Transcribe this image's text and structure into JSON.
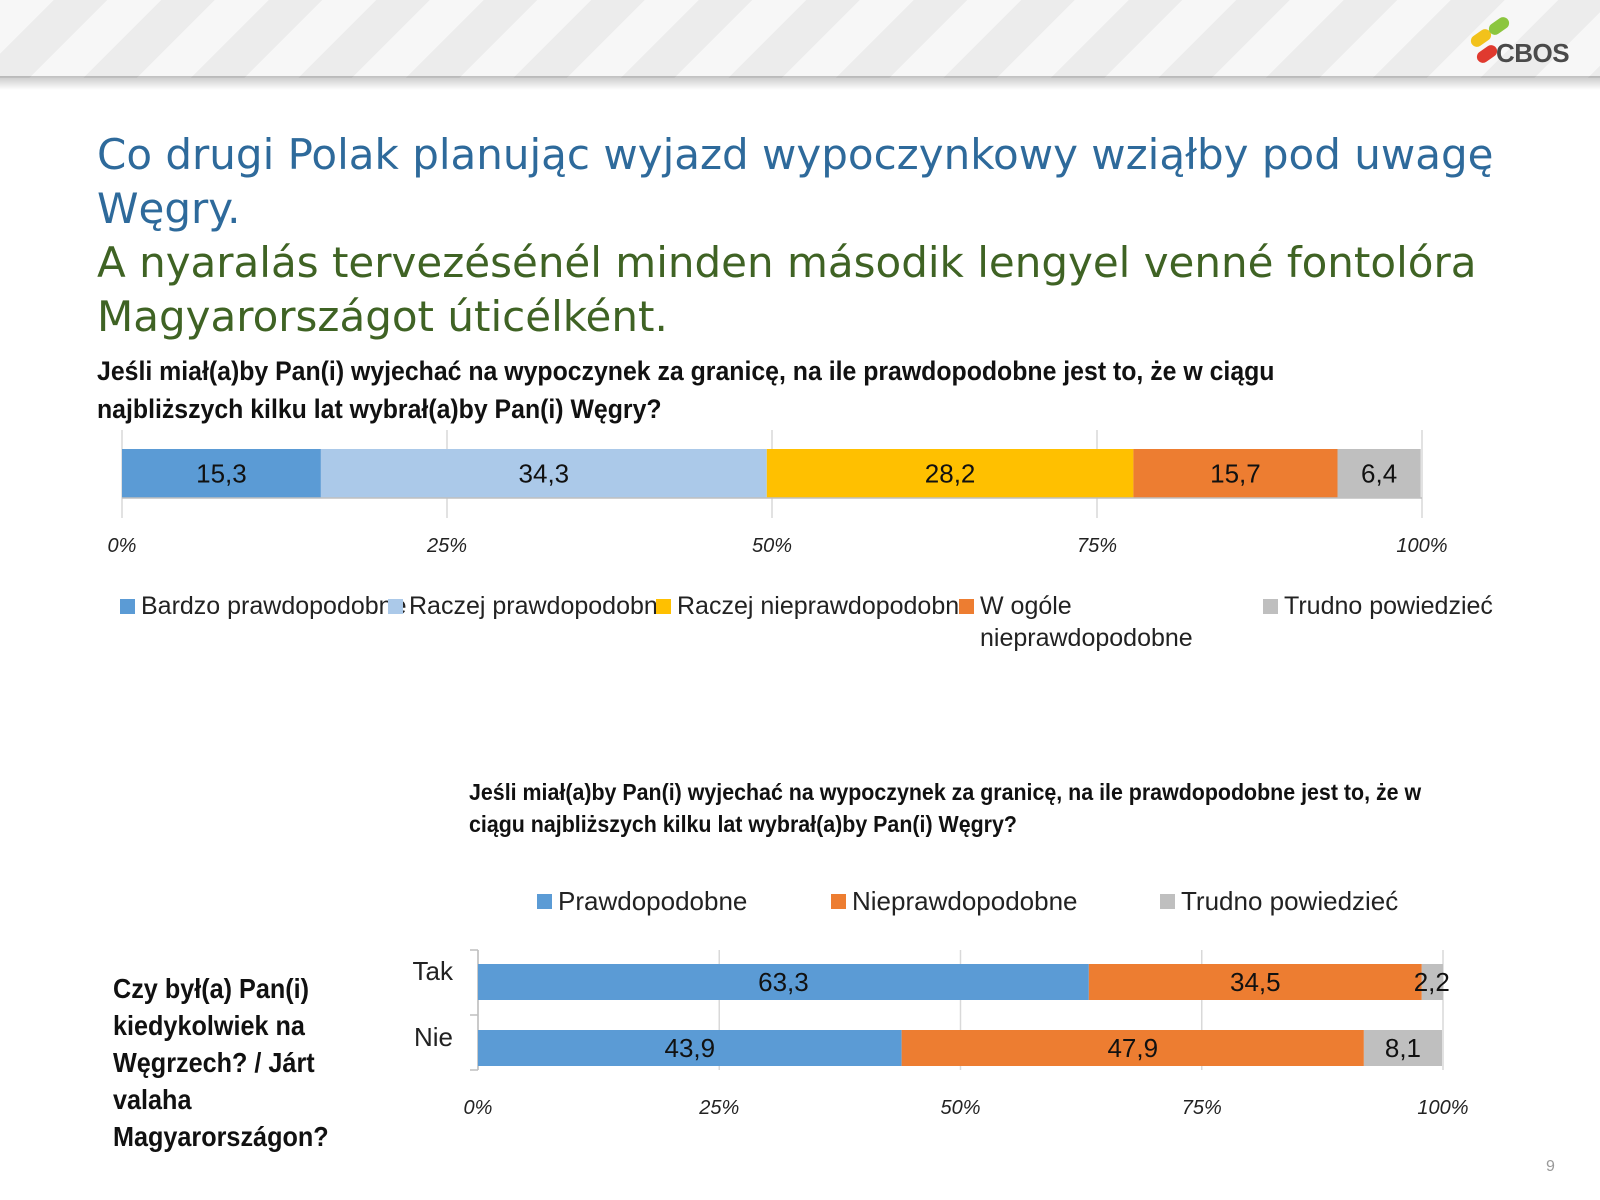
{
  "header": {
    "logo_text": "CBOS"
  },
  "title_pl": "Co drugi Polak planując wyjazd wypoczynkowy wziąłby pod uwagę Węgry.",
  "title_hu": "A nyaralás tervezésénél minden második lengyel venné fontolóra Magyarországot úticélként.",
  "page_number": "9",
  "side_question": "Czy był(a) Pan(i) kiedykolwiek na Węgrzech? / Járt valaha Magyarországon?",
  "colors": {
    "blue": "#5b9bd5",
    "light_blue": "#abc9e9",
    "yellow": "#ffc000",
    "orange": "#ed7d31",
    "gray": "#bfbfbf",
    "title_blue": "#2e6a9b",
    "title_green": "#3f6324"
  },
  "chart_data": [
    {
      "type": "bar",
      "orientation": "horizontal-stacked-100",
      "title": "Jeśli miał(a)by Pan(i) wyjechać na wypoczynek za granicę, na ile prawdopodobne jest to, że w ciągu najbliższych kilku lat wybrał(a)by Pan(i) Węgry?",
      "categories": [
        ""
      ],
      "series": [
        {
          "name": "Bardzo prawdopodobne",
          "values": [
            15.3
          ],
          "label": "15,3",
          "color": "#5b9bd5"
        },
        {
          "name": "Raczej prawdopodobne",
          "values": [
            34.3
          ],
          "label": "34,3",
          "color": "#abc9e9"
        },
        {
          "name": "Raczej nieprawdopodobne",
          "values": [
            28.2
          ],
          "label": "28,2",
          "color": "#ffc000"
        },
        {
          "name": "W ogóle nieprawdopodobne",
          "values": [
            15.7
          ],
          "label": "15,7",
          "color": "#ed7d31"
        },
        {
          "name": "Trudno powiedzieć",
          "values": [
            6.4
          ],
          "label": "6,4",
          "color": "#bfbfbf"
        }
      ],
      "xticks": [
        "0%",
        "25%",
        "50%",
        "75%",
        "100%"
      ],
      "xlim": [
        0,
        100
      ],
      "grid": true,
      "legend": "bottom"
    },
    {
      "type": "bar",
      "orientation": "horizontal-stacked-100",
      "title": "Jeśli miał(a)by Pan(i) wyjechać na wypoczynek za granicę, na ile prawdopodobne jest to, że w ciągu najbliższych kilku lat wybrał(a)by Pan(i) Węgry?",
      "categories": [
        "Tak",
        "Nie"
      ],
      "series": [
        {
          "name": "Prawdopodobne",
          "values": [
            63.3,
            43.9
          ],
          "labels": [
            "63,3",
            "43,9"
          ],
          "color": "#5b9bd5"
        },
        {
          "name": "Nieprawdopodobne",
          "values": [
            34.5,
            47.9
          ],
          "labels": [
            "34,5",
            "47,9"
          ],
          "color": "#ed7d31"
        },
        {
          "name": "Trudno powiedzieć",
          "values": [
            2.2,
            8.1
          ],
          "labels": [
            "2,2",
            "8,1"
          ],
          "color": "#bfbfbf"
        }
      ],
      "xticks": [
        "0%",
        "25%",
        "50%",
        "75%",
        "100%"
      ],
      "xlim": [
        0,
        100
      ],
      "grid": true,
      "legend": "top"
    }
  ]
}
